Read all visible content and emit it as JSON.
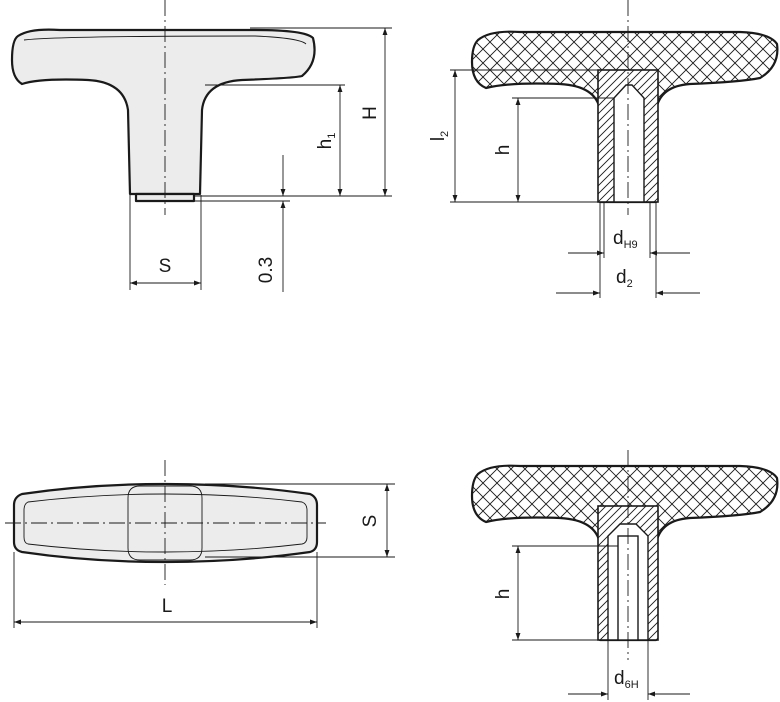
{
  "labels": {
    "S": "S",
    "H": "H",
    "h1_base": "h",
    "h1_sub": "1",
    "clearance": "0.3",
    "l2_base": "l",
    "l2_sub": "2",
    "h": "h",
    "dH9_base": "d",
    "dH9_sub": "H9",
    "d2_base": "d",
    "d2_sub": "2",
    "S_bottom": "S",
    "L": "L",
    "h_bottom": "h",
    "d6H_base": "d",
    "d6H_sub": "6H"
  },
  "colors": {
    "body_fill": "#ececec",
    "line": "#1a1a1a",
    "background": "#ffffff"
  }
}
